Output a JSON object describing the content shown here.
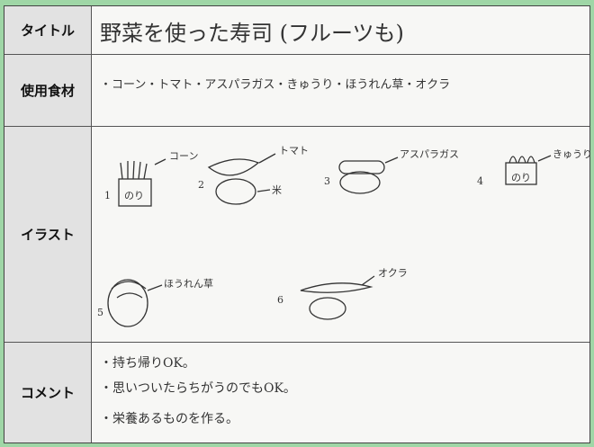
{
  "rows": [
    {
      "label": "タイトル",
      "content": "野菜を使った寿司 (フルーツも)"
    },
    {
      "label": "使用食材",
      "content": "・コーン・トマト・アスパラガス・きゅうり・ほうれん草・オクラ"
    },
    {
      "label": "イラスト",
      "items": [
        {
          "number": "1",
          "labels": [
            "コーン",
            "のり"
          ]
        },
        {
          "number": "2",
          "labels": [
            "トマト",
            "米"
          ]
        },
        {
          "number": "3",
          "labels": [
            "アスパラガス"
          ]
        },
        {
          "number": "4",
          "labels": [
            "きゅうり",
            "のり"
          ]
        },
        {
          "number": "5",
          "labels": [
            "ほうれん草"
          ]
        },
        {
          "number": "6",
          "labels": [
            "オクラ"
          ]
        }
      ]
    },
    {
      "label": "コメント",
      "lines": [
        "・持ち帰りOK。",
        "・思いついたらちがうのでもOK。",
        "・栄養あるものを作る。"
      ]
    }
  ]
}
